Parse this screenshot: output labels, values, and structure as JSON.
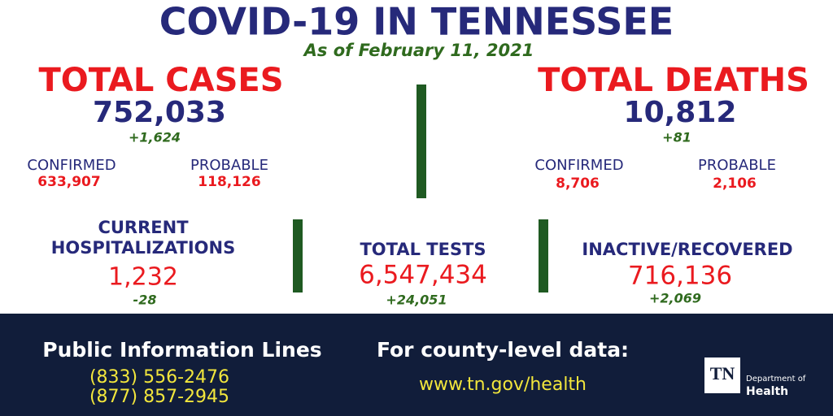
{
  "header": {
    "title": "COVID-19 IN TENNESSEE",
    "subtitle": "As of February 11, 2021"
  },
  "total_cases": {
    "label": "TOTAL CASES",
    "value": "752,033",
    "change": "+1,624",
    "confirmed": {
      "label": "CONFIRMED",
      "value": "633,907"
    },
    "probable": {
      "label": "PROBABLE",
      "value": "118,126"
    }
  },
  "total_deaths": {
    "label": "TOTAL DEATHS",
    "value": "10,812",
    "change": "+81",
    "confirmed": {
      "label": "CONFIRMED",
      "value": "8,706"
    },
    "probable": {
      "label": "PROBABLE",
      "value": "2,106"
    }
  },
  "hospitalizations": {
    "label_lines": [
      "CURRENT",
      "HOSPITALIZATIONS"
    ],
    "value": "1,232",
    "change": "-28"
  },
  "total_tests": {
    "label": "TOTAL TESTS",
    "value": "6,547,434",
    "change": "+24,051"
  },
  "recovered": {
    "label": "INACTIVE/RECOVERED",
    "value": "716,136",
    "change": "+2,069"
  },
  "footer": {
    "info_title": "Public Information Lines",
    "phones": [
      "(833) 556-2476",
      "(877) 857-2945"
    ],
    "county_title": "For county-level data:",
    "url": "www.tn.gov/health",
    "logo": {
      "mark": "TN",
      "line1": "Department of",
      "line2": "Health"
    }
  }
}
